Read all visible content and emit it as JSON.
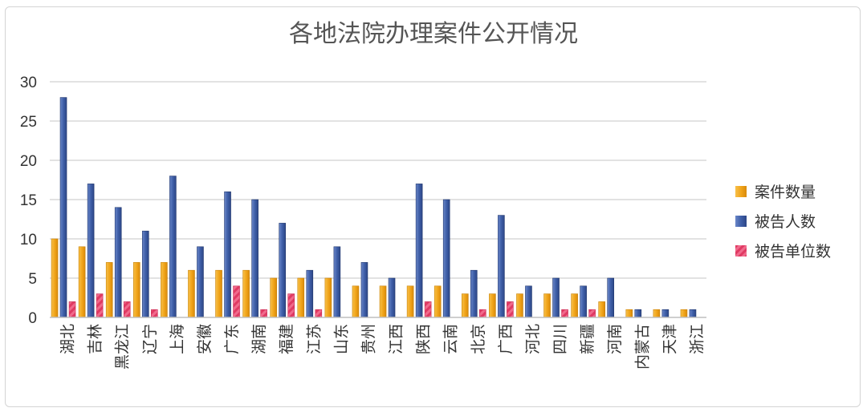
{
  "chart_data": {
    "type": "bar",
    "title": "各地法院办理案件公开情况",
    "xlabel": "",
    "ylabel": "",
    "ylim": [
      0,
      30
    ],
    "yticks": [
      0,
      5,
      10,
      15,
      20,
      25,
      30
    ],
    "grid": true,
    "legend_position": "right",
    "categories": [
      "湖北",
      "吉林",
      "黑龙江",
      "辽宁",
      "上海",
      "安徽",
      "广东",
      "湖南",
      "福建",
      "江苏",
      "山东",
      "贵州",
      "江西",
      "陕西",
      "云南",
      "北京",
      "广西",
      "河北",
      "四川",
      "新疆",
      "河南",
      "内蒙古",
      "天津",
      "浙江"
    ],
    "series": [
      {
        "name": "案件数量",
        "color": "#f0a318",
        "values": [
          10,
          9,
          7,
          7,
          7,
          6,
          6,
          6,
          5,
          5,
          5,
          4,
          4,
          4,
          4,
          3,
          3,
          3,
          3,
          3,
          2,
          1,
          1,
          1
        ]
      },
      {
        "name": "被告人数",
        "color": "#3f5fa8",
        "values": [
          28,
          17,
          14,
          11,
          18,
          9,
          16,
          15,
          12,
          6,
          9,
          7,
          5,
          17,
          15,
          6,
          13,
          4,
          5,
          4,
          5,
          1,
          1,
          1
        ]
      },
      {
        "name": "被告单位数",
        "color": "#e8496f",
        "values": [
          2,
          3,
          2,
          1,
          0,
          0,
          4,
          1,
          3,
          1,
          0,
          0,
          0,
          2,
          0,
          1,
          2,
          0,
          1,
          1,
          0,
          0,
          0,
          0
        ]
      }
    ]
  }
}
